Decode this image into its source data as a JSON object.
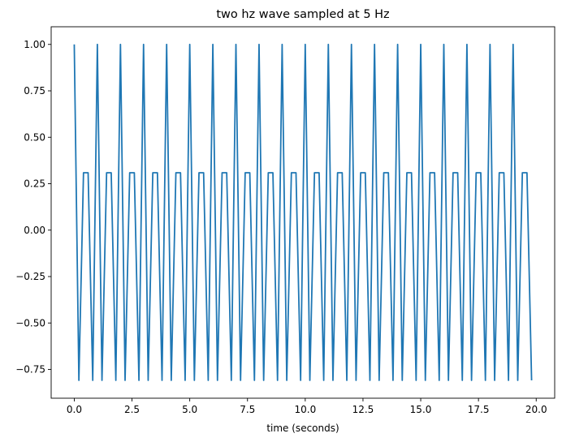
{
  "chart_data": {
    "type": "line",
    "title": "two hz wave sampled at 5 Hz",
    "xlabel": "time (seconds)",
    "ylabel": "",
    "xlim": [
      -1.0,
      20.8
    ],
    "ylim": [
      -0.905,
      1.095
    ],
    "xticks": [
      0.0,
      2.5,
      5.0,
      7.5,
      10.0,
      12.5,
      15.0,
      17.5,
      20.0
    ],
    "xtick_labels": [
      "0.0",
      "2.5",
      "5.0",
      "7.5",
      "10.0",
      "12.5",
      "15.0",
      "17.5",
      "20.0"
    ],
    "yticks": [
      -0.75,
      -0.5,
      -0.25,
      0.0,
      0.25,
      0.5,
      0.75,
      1.0
    ],
    "ytick_labels": [
      "−0.75",
      "−0.50",
      "−0.25",
      "0.00",
      "0.25",
      "0.50",
      "0.75",
      "1.00"
    ],
    "grid": false,
    "series": [
      {
        "color": "#1f77b4",
        "sample_rate_hz": 5,
        "signal_frequency_hz": 2,
        "x_start": 0.0,
        "x_end": 19.8,
        "y_pattern": [
          1.0,
          -0.809,
          0.309,
          0.309,
          -0.809
        ]
      }
    ]
  }
}
